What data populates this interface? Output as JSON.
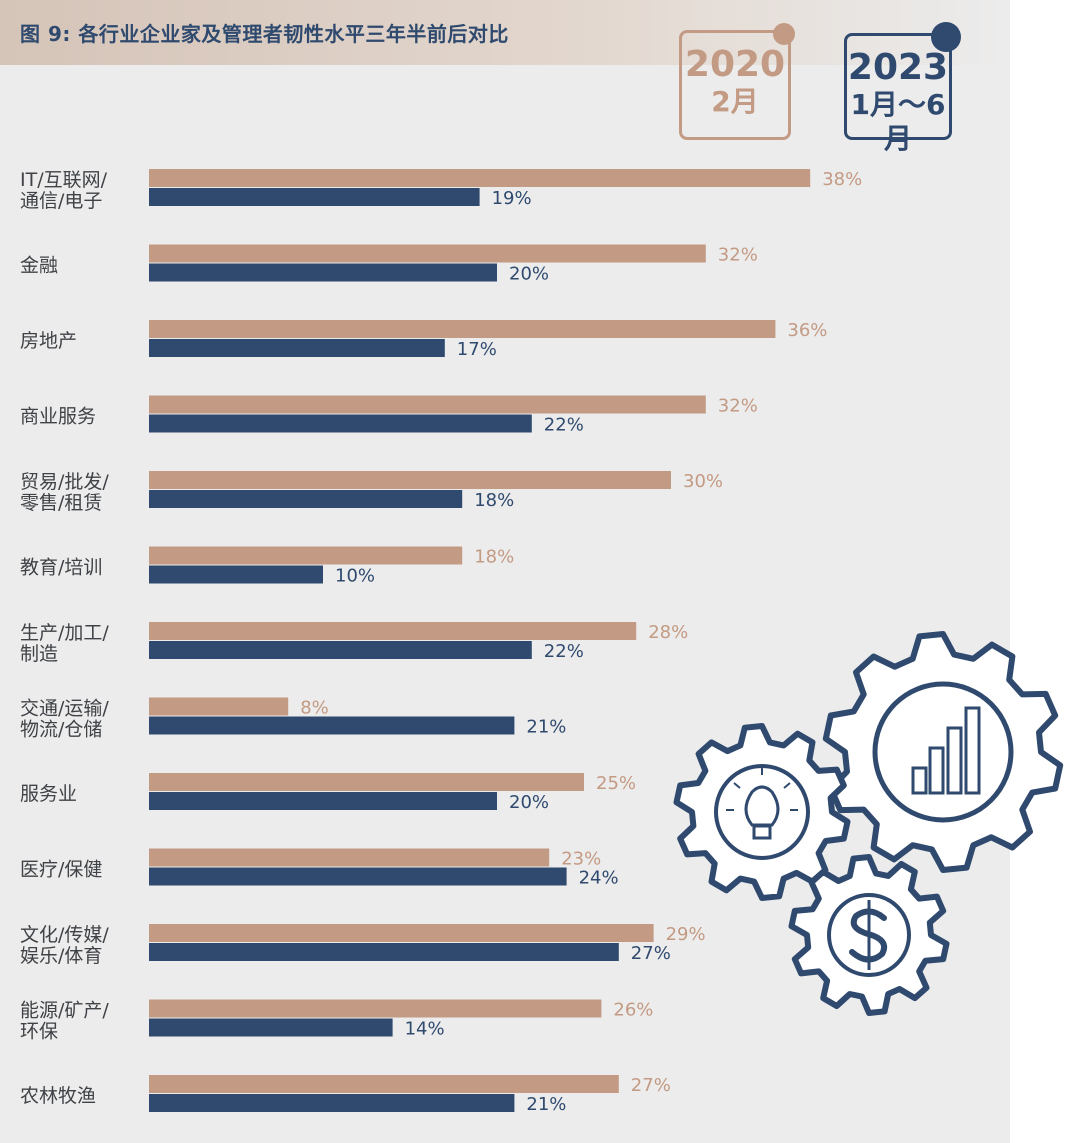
{
  "title": "图 9: 各行业企业家及管理者韧性水平三年半前后对比",
  "legend": {
    "a": {
      "year": "2020",
      "period": "2月"
    },
    "b": {
      "year": "2023",
      "period": "1月～6月"
    }
  },
  "colors": {
    "series_2020": "#c39a83",
    "series_2023": "#2f4a6e",
    "background": "#ececec"
  },
  "chart_data": {
    "type": "bar",
    "orientation": "horizontal",
    "categories": [
      [
        "IT/互联网/",
        "通信/电子"
      ],
      [
        "金融"
      ],
      [
        "房地产"
      ],
      [
        "商业服务"
      ],
      [
        "贸易/批发/",
        "零售/租赁"
      ],
      [
        "教育/培训"
      ],
      [
        "生产/加工/",
        "制造"
      ],
      [
        "交通/运输/",
        "物流/仓储"
      ],
      [
        "服务业"
      ],
      [
        "医疗/保健"
      ],
      [
        "文化/传媒/",
        "娱乐/体育"
      ],
      [
        "能源/矿产/",
        "环保"
      ],
      [
        "农林牧渔"
      ]
    ],
    "series": [
      {
        "name": "2020 2月",
        "color": "#c39a83",
        "values": [
          38,
          32,
          36,
          32,
          30,
          18,
          28,
          8,
          25,
          23,
          29,
          26,
          27
        ]
      },
      {
        "name": "2023 1月～6月",
        "color": "#2f4a6e",
        "values": [
          19,
          20,
          17,
          22,
          18,
          10,
          22,
          21,
          20,
          24,
          27,
          14,
          21
        ]
      }
    ],
    "value_format": "percent",
    "grid": false
  },
  "decoration": {
    "icons": [
      "gear-bar-chart-icon",
      "gear-lightbulb-icon",
      "gear-dollar-icon"
    ]
  }
}
